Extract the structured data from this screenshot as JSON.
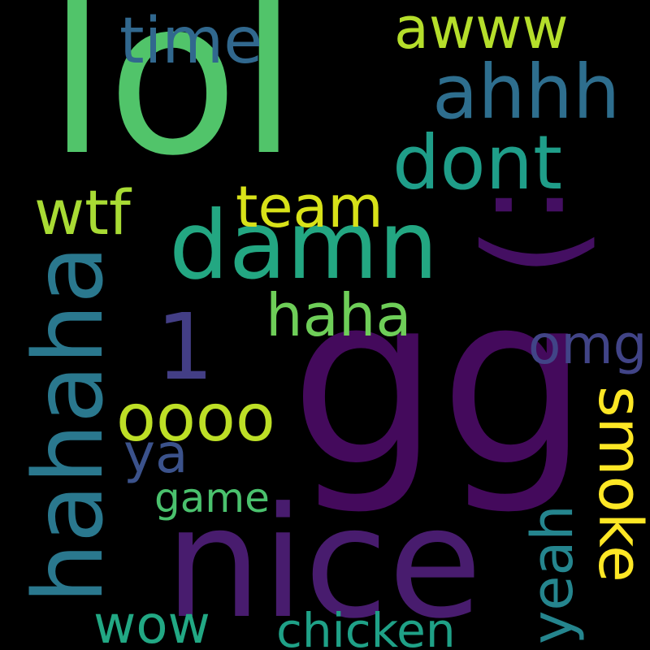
{
  "words": [
    {
      "text": "lol",
      "color": "#51c46a"
    },
    {
      "text": "gg",
      "color": "#440a5c"
    },
    {
      "text": "nice",
      "color": "#481c6e"
    },
    {
      "text": "damn",
      "color": "#23a782"
    },
    {
      "text": ":)",
      "color": "#440f62"
    },
    {
      "text": "hahaha",
      "color": "#2a788e"
    },
    {
      "text": "ahhh",
      "color": "#2e6e8e"
    },
    {
      "text": "dont",
      "color": "#1f9e89"
    },
    {
      "text": "time",
      "color": "#31688e"
    },
    {
      "text": "awww",
      "color": "#b5de2b"
    },
    {
      "text": "team",
      "color": "#d8e219"
    },
    {
      "text": "wtf",
      "color": "#a8db34"
    },
    {
      "text": "1",
      "color": "#433e85"
    },
    {
      "text": "haha",
      "color": "#6ece58"
    },
    {
      "text": "omg",
      "color": "#414487"
    },
    {
      "text": "oooo",
      "color": "#bddf26"
    },
    {
      "text": "smoke",
      "color": "#fde725"
    },
    {
      "text": "ya",
      "color": "#3b528b"
    },
    {
      "text": "yeah",
      "color": "#25858e"
    },
    {
      "text": "game",
      "color": "#4ac16d"
    },
    {
      "text": "wow",
      "color": "#22a884"
    },
    {
      "text": "chicken",
      "color": "#1fa187"
    }
  ]
}
